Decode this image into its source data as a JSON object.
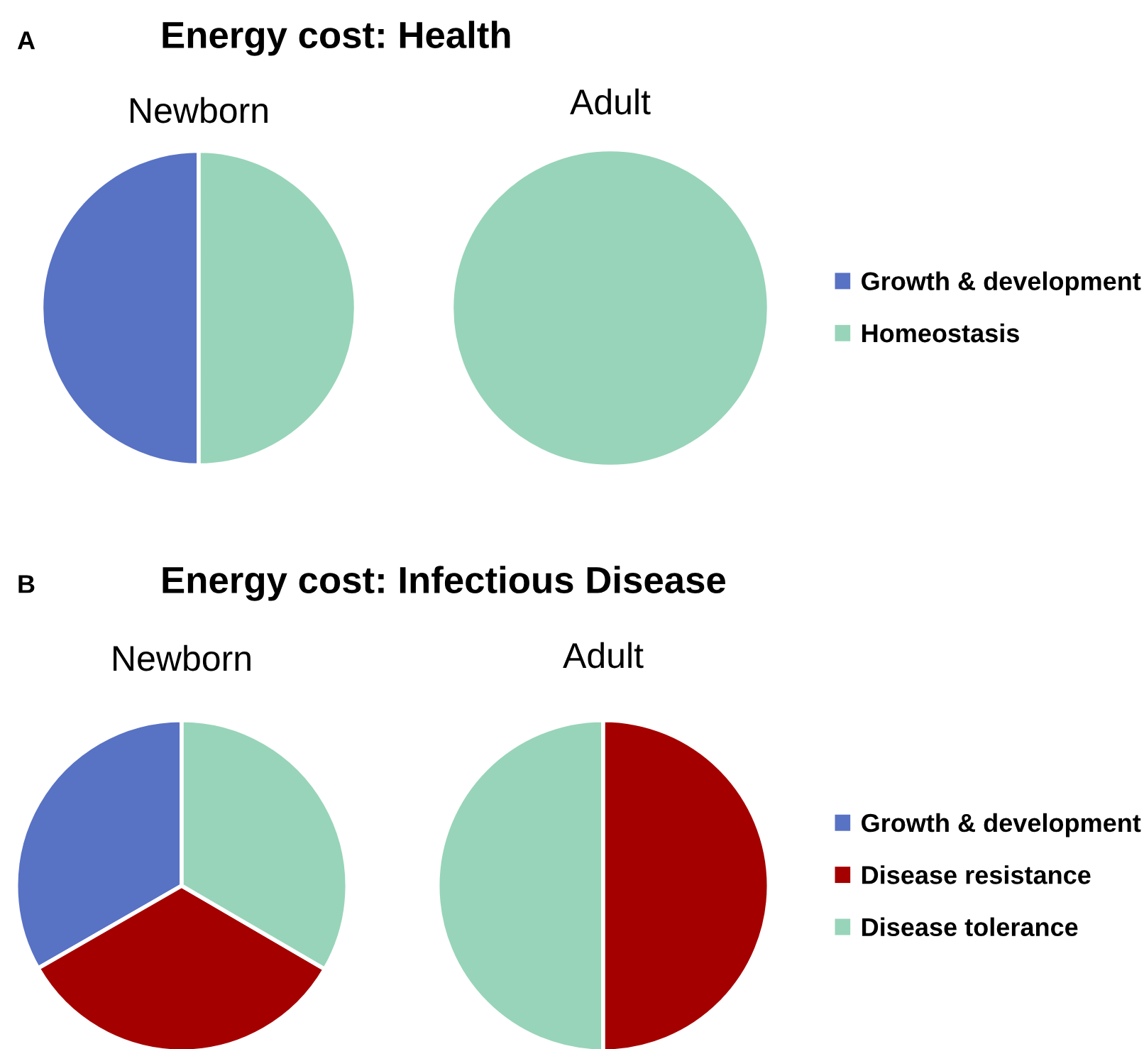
{
  "chart_data": [
    {
      "type": "pie",
      "title": "Newborn",
      "annotations": [
        "A",
        "Energy cost: Health"
      ],
      "categories": [
        "Growth & development",
        "Homeostasis"
      ],
      "values": [
        50,
        50
      ],
      "colors": [
        "#5872c4",
        "#98d4b9"
      ],
      "legend": "right"
    },
    {
      "type": "pie",
      "title": "Adult",
      "categories": [
        null
      ],
      "values": [
        100
      ],
      "colors": [
        "#98d4b9"
      ]
    },
    {
      "type": "pie",
      "title": "Newborn",
      "annotations": [
        "B",
        "Energy cost: Infectious Disease"
      ],
      "categories": [
        "Growth & development",
        "Disease resistance",
        "Disease tolerance"
      ],
      "values": [
        33.3,
        33.3,
        33.4
      ],
      "colors": [
        "#5872c4",
        "#a50000",
        "#98d4b9"
      ],
      "legend": "right"
    },
    {
      "type": "pie",
      "title": "Adult",
      "categories": [
        null,
        null
      ],
      "values": [
        50,
        50
      ],
      "colors": [
        "#98d4b9",
        "#a50000"
      ]
    }
  ]
}
